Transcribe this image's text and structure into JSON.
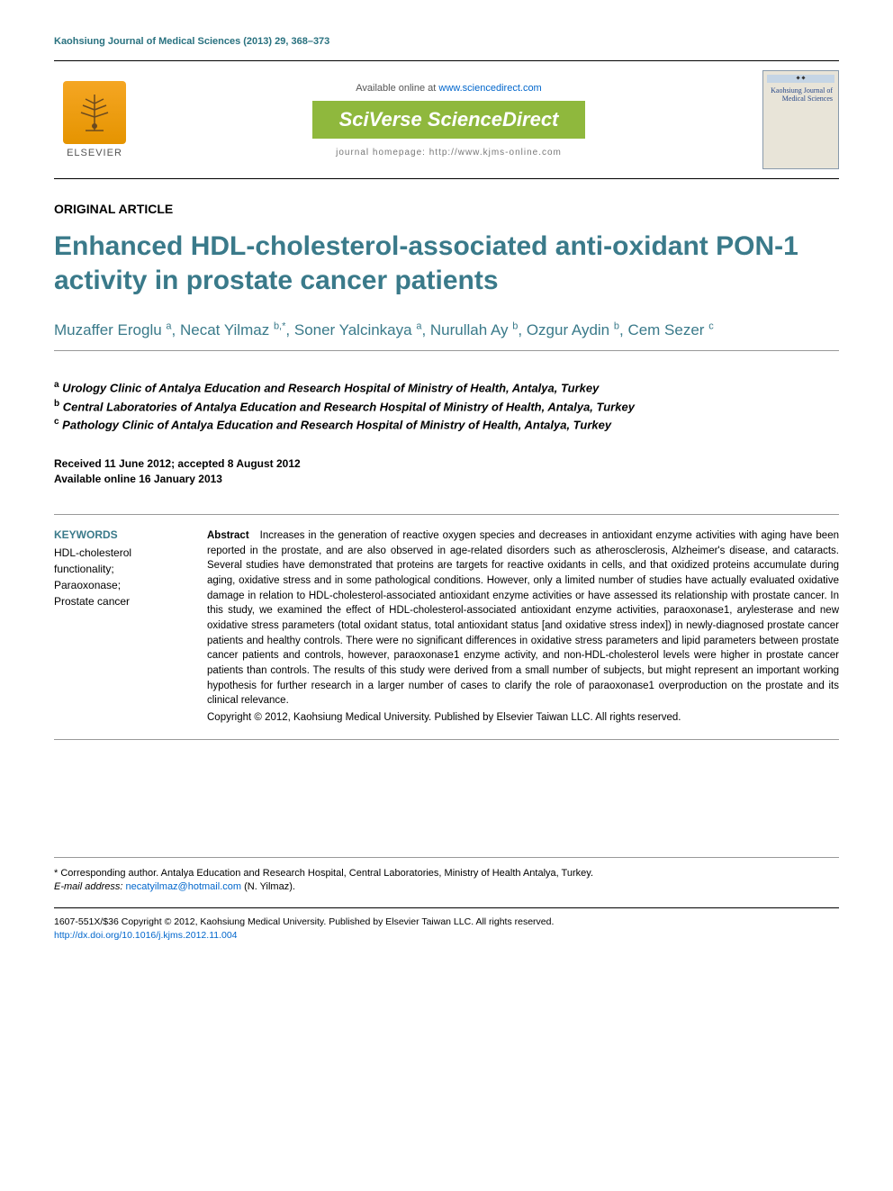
{
  "journal_header": "Kaohsiung Journal of Medical Sciences (2013) 29, 368–373",
  "available_prefix": "Available online at ",
  "available_link": "www.sciencedirect.com",
  "sciverse": "SciVerse ScienceDirect",
  "homepage": "journal homepage: http://www.kjms-online.com",
  "elsevier": "ELSEVIER",
  "cover": {
    "line1": "Kaohsiung Journal of",
    "line2": "Medical Sciences"
  },
  "article_type": "ORIGINAL ARTICLE",
  "title": "Enhanced HDL-cholesterol-associated anti-oxidant PON-1 activity in prostate cancer patients",
  "authors": [
    {
      "name": "Muzaffer Eroglu",
      "aff": "a"
    },
    {
      "name": "Necat Yilmaz",
      "aff": "b,*"
    },
    {
      "name": "Soner Yalcinkaya",
      "aff": "a"
    },
    {
      "name": "Nurullah Ay",
      "aff": "b"
    },
    {
      "name": "Ozgur Aydin",
      "aff": "b"
    },
    {
      "name": "Cem Sezer",
      "aff": "c"
    }
  ],
  "affiliations": [
    {
      "sup": "a",
      "text": "Urology Clinic of Antalya Education and Research Hospital of Ministry of Health, Antalya, Turkey"
    },
    {
      "sup": "b",
      "text": "Central Laboratories of Antalya Education and Research Hospital of Ministry of Health, Antalya, Turkey"
    },
    {
      "sup": "c",
      "text": "Pathology Clinic of Antalya Education and Research Hospital of Ministry of Health, Antalya, Turkey"
    }
  ],
  "dates": {
    "received": "Received 11 June 2012; accepted 8 August 2012",
    "online": "Available online 16 January 2013"
  },
  "keywords_heading": "KEYWORDS",
  "keywords": "HDL-cholesterol functionality;\nParaoxonase;\nProstate cancer",
  "abstract_label": "Abstract",
  "abstract_body": "Increases in the generation of reactive oxygen species and decreases in antioxidant enzyme activities with aging have been reported in the prostate, and are also observed in age-related disorders such as atherosclerosis, Alzheimer's disease, and cataracts. Several studies have demonstrated that proteins are targets for reactive oxidants in cells, and that oxidized proteins accumulate during aging, oxidative stress and in some pathological conditions. However, only a limited number of studies have actually evaluated oxidative damage in relation to HDL-cholesterol-associated antioxidant enzyme activities or have assessed its relationship with prostate cancer. In this study, we examined the effect of HDL-cholesterol-associated antioxidant enzyme activities, paraoxonase1, arylesterase and new oxidative stress parameters (total oxidant status, total antioxidant status [and oxidative stress index]) in newly-diagnosed prostate cancer patients and healthy controls. There were no significant differences in oxidative stress parameters and lipid parameters between prostate cancer patients and controls, however, paraoxonase1 enzyme activity, and non-HDL-cholesterol levels were higher in prostate cancer patients than controls. The results of this study were derived from a small number of subjects, but might represent an important working hypothesis for further research in a larger number of cases to clarify the role of paraoxonase1 overproduction on the prostate and its clinical relevance.",
  "abstract_copyright": "Copyright © 2012, Kaohsiung Medical University. Published by Elsevier Taiwan LLC. All rights reserved.",
  "footer": {
    "corr_label": "* Corresponding author. Antalya Education and Research Hospital, Central Laboratories, Ministry of Health Antalya, Turkey.",
    "email_label": "E-mail address:",
    "email": "necatyilmaz@hotmail.com",
    "email_name": "(N. Yilmaz).",
    "issn": "1607-551X/$36 Copyright © 2012, Kaohsiung Medical University. Published by Elsevier Taiwan LLC. All rights reserved.",
    "doi": "http://dx.doi.org/10.1016/j.kjms.2012.11.004"
  },
  "colors": {
    "teal": "#3a7a8a",
    "link": "#0066cc",
    "green_badge": "#8fb83d",
    "orange": "#e59400"
  }
}
